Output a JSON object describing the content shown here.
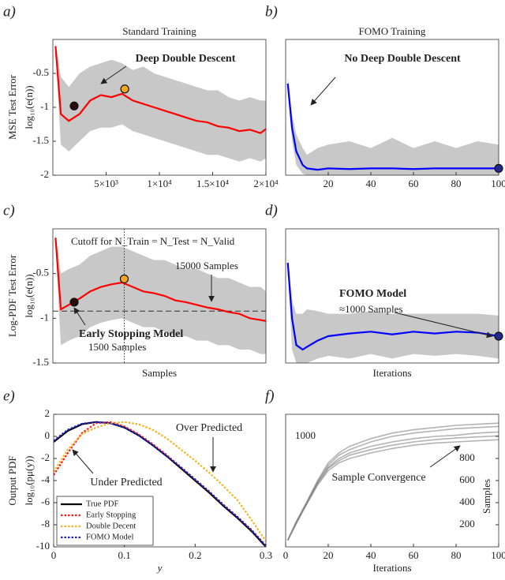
{
  "chart_data": [
    {
      "type": "line",
      "panel_label": "a)",
      "title": "Standard Training",
      "ylabel": [
        "MSE Test Error",
        "log₁₀(e(n))"
      ],
      "xlim": [
        0,
        20000
      ],
      "ylim": [
        -2,
        0
      ],
      "xticks": [
        {
          "value": 5000,
          "label": "5×10³"
        },
        {
          "value": 10000,
          "label": "1×10⁴"
        },
        {
          "value": 15000,
          "label": "1.5×10⁴"
        },
        {
          "value": 20000,
          "label": "2×10⁴"
        }
      ],
      "yticks": [
        -2,
        -1.5,
        -1,
        -0.5
      ],
      "x": [
        250,
        750,
        1500,
        2500,
        3500,
        4500,
        5500,
        6500,
        7500,
        8500,
        9500,
        10500,
        11500,
        12500,
        13500,
        14500,
        15500,
        16500,
        17500,
        18500,
        19500,
        20000
      ],
      "series": [
        {
          "kind": "band",
          "color": "#c8c8c8",
          "upper": [
            -0.05,
            -0.55,
            -0.7,
            -0.5,
            -0.4,
            -0.35,
            -0.3,
            -0.35,
            -0.45,
            -0.4,
            -0.5,
            -0.55,
            -0.6,
            -0.65,
            -0.7,
            -0.75,
            -0.75,
            -0.85,
            -0.9,
            -0.85,
            -0.9,
            -0.9
          ],
          "lower": [
            -0.2,
            -1.55,
            -1.65,
            -1.5,
            -1.35,
            -1.3,
            -1.3,
            -1.25,
            -1.35,
            -1.4,
            -1.45,
            -1.5,
            -1.55,
            -1.6,
            -1.65,
            -1.7,
            -1.7,
            -1.75,
            -1.8,
            -1.75,
            -1.8,
            -1.75
          ]
        },
        {
          "kind": "line",
          "color": "#ff0000",
          "values": [
            -0.1,
            -1.1,
            -1.2,
            -1.1,
            -0.9,
            -0.82,
            -0.85,
            -0.8,
            -0.9,
            -0.95,
            -1.0,
            -1.05,
            -1.1,
            -1.15,
            -1.2,
            -1.22,
            -1.28,
            -1.3,
            -1.35,
            -1.33,
            -1.38,
            -1.32
          ]
        },
        {
          "kind": "points",
          "color": "#2b0a0a",
          "x": [
            2000
          ],
          "values": [
            -0.98
          ]
        },
        {
          "kind": "points",
          "color": "#f5a623",
          "x": [
            6750
          ],
          "values": [
            -0.73
          ]
        }
      ],
      "annotations": [
        "Deep Double Descent"
      ]
    },
    {
      "type": "line",
      "panel_label": "b)",
      "title": "FOMO Training",
      "xlim": [
        0,
        100
      ],
      "ylim": [
        -2,
        0
      ],
      "xticks": [
        20,
        40,
        60,
        80,
        100
      ],
      "x": [
        1,
        3,
        5,
        8,
        10,
        15,
        20,
        30,
        40,
        50,
        60,
        70,
        80,
        90,
        100
      ],
      "series": [
        {
          "kind": "band",
          "color": "#c8c8c8",
          "upper": [
            -0.55,
            -1.1,
            -1.4,
            -1.6,
            -1.7,
            -1.6,
            -1.55,
            -1.5,
            -1.6,
            -1.45,
            -1.6,
            -1.5,
            -1.6,
            -1.5,
            -1.55
          ],
          "lower": [
            -0.75,
            -1.5,
            -1.85,
            -1.98,
            -2,
            -2,
            -2,
            -2,
            -2,
            -2,
            -2,
            -2,
            -2,
            -2,
            -2
          ]
        },
        {
          "kind": "line",
          "color": "#0000ff",
          "values": [
            -0.65,
            -1.3,
            -1.65,
            -1.85,
            -1.9,
            -1.92,
            -1.9,
            -1.91,
            -1.9,
            -1.9,
            -1.91,
            -1.9,
            -1.9,
            -1.9,
            -1.9
          ]
        },
        {
          "kind": "points",
          "color": "#1f2a8a",
          "x": [
            100
          ],
          "values": [
            -1.9
          ]
        }
      ],
      "annotations": [
        "No Deep Double Descent"
      ]
    },
    {
      "type": "line",
      "panel_label": "c)",
      "ylabel": [
        "Log-PDF Test Error",
        "log₁₀(e(n))"
      ],
      "xlabel": "Samples",
      "xlim": [
        0,
        20000
      ],
      "ylim": [
        -1.5,
        0
      ],
      "yticks": [
        -1.5,
        -1,
        -0.5
      ],
      "x": [
        250,
        750,
        1500,
        2500,
        3500,
        4500,
        5500,
        6500,
        7500,
        8500,
        9500,
        10500,
        11500,
        12500,
        13500,
        14500,
        15500,
        16500,
        17500,
        18500,
        19500,
        20000
      ],
      "hline": -0.92,
      "vline": 6700,
      "series": [
        {
          "kind": "band",
          "color": "#c8c8c8",
          "upper": [
            -0.05,
            -0.5,
            -0.45,
            -0.4,
            -0.3,
            -0.25,
            -0.2,
            -0.2,
            -0.25,
            -0.3,
            -0.35,
            -0.35,
            -0.4,
            -0.45,
            -0.45,
            -0.5,
            -0.55,
            -0.55,
            -0.6,
            -0.65,
            -0.65,
            -0.7
          ],
          "lower": [
            -0.2,
            -1.3,
            -1.25,
            -1.2,
            -1.1,
            -1.05,
            -1.02,
            -1.0,
            -1.05,
            -1.1,
            -1.1,
            -1.15,
            -1.2,
            -1.2,
            -1.25,
            -1.25,
            -1.3,
            -1.3,
            -1.35,
            -1.35,
            -1.4,
            -1.4
          ]
        },
        {
          "kind": "line",
          "color": "#ff0000",
          "values": [
            -0.1,
            -0.9,
            -0.85,
            -0.78,
            -0.7,
            -0.65,
            -0.62,
            -0.6,
            -0.65,
            -0.7,
            -0.72,
            -0.75,
            -0.8,
            -0.82,
            -0.85,
            -0.88,
            -0.9,
            -0.93,
            -0.95,
            -1.0,
            -1.02,
            -1.03
          ]
        },
        {
          "kind": "points",
          "color": "#2b0a0a",
          "x": [
            2000
          ],
          "values": [
            -0.82
          ]
        },
        {
          "kind": "points",
          "color": "#f5a623",
          "x": [
            6700
          ],
          "values": [
            -0.56
          ]
        }
      ],
      "annotations": [
        "Cutoff for N_Train = N_Test = N_Valid",
        "15000 Samples",
        "Early Stopping Model",
        "1500 Samples"
      ]
    },
    {
      "type": "line",
      "panel_label": "d)",
      "xlabel": "Iterations",
      "xlim": [
        0,
        100
      ],
      "ylim": [
        -1.5,
        0
      ],
      "x": [
        1,
        3,
        5,
        8,
        10,
        15,
        20,
        30,
        40,
        50,
        60,
        70,
        80,
        90,
        100
      ],
      "series": [
        {
          "kind": "band",
          "color": "#c8c8c8",
          "upper": [
            -0.3,
            -0.8,
            -0.95,
            -0.95,
            -0.9,
            -0.92,
            -0.95,
            -0.95,
            -0.92,
            -0.95,
            -0.95,
            -0.95,
            -0.95,
            -0.95,
            -0.97
          ],
          "lower": [
            -0.45,
            -1.35,
            -1.5,
            -1.5,
            -1.5,
            -1.45,
            -1.42,
            -1.45,
            -1.4,
            -1.45,
            -1.4,
            -1.42,
            -1.4,
            -1.42,
            -1.45
          ]
        },
        {
          "kind": "line",
          "color": "#0000ff",
          "values": [
            -0.38,
            -1.0,
            -1.3,
            -1.35,
            -1.32,
            -1.25,
            -1.2,
            -1.17,
            -1.15,
            -1.18,
            -1.15,
            -1.17,
            -1.15,
            -1.16,
            -1.2
          ]
        },
        {
          "kind": "points",
          "color": "#1f2a8a",
          "x": [
            100
          ],
          "values": [
            -1.2
          ]
        }
      ],
      "annotations": [
        "FOMO Model",
        "≈1000 Samples"
      ]
    },
    {
      "type": "line",
      "panel_label": "e)",
      "ylabel": [
        "Output PDF",
        "log₁₀(pμ(y))"
      ],
      "xlabel": "y",
      "xlim": [
        0,
        0.3
      ],
      "ylim": [
        -10,
        2
      ],
      "xticks": [
        0,
        0.1,
        0.2,
        0.3
      ],
      "yticks": [
        -10,
        -8,
        -6,
        -4,
        -2,
        0,
        2
      ],
      "x": [
        0,
        0.02,
        0.04,
        0.06,
        0.08,
        0.1,
        0.12,
        0.14,
        0.16,
        0.18,
        0.2,
        0.22,
        0.24,
        0.26,
        0.28,
        0.3
      ],
      "legend": "lower left",
      "series": [
        {
          "kind": "line",
          "name": "True PDF",
          "color": "#000000",
          "style": "solid",
          "values": [
            -0.5,
            0.5,
            1.1,
            1.3,
            1.2,
            0.8,
            0.1,
            -0.8,
            -1.8,
            -2.9,
            -4,
            -5.1,
            -6.3,
            -7.4,
            -8.6,
            -10
          ]
        },
        {
          "kind": "line",
          "name": "Early Stopping",
          "color": "#ff1a1a",
          "style": "dotted",
          "values": [
            -3.5,
            -1.5,
            0.3,
            1.2,
            1.3,
            0.9,
            0.2,
            -0.7,
            -1.7,
            -2.8,
            -3.9,
            -5,
            -6.2,
            -7.3,
            -8.5,
            -9.9
          ]
        },
        {
          "kind": "line",
          "name": "Double Decent",
          "color": "#f5b321",
          "style": "dotted",
          "values": [
            -3.2,
            -1.2,
            0.2,
            0.8,
            1.2,
            1.3,
            1.1,
            0.6,
            -0.2,
            -1.2,
            -2.2,
            -3.3,
            -4.5,
            -5.8,
            -7.6,
            -9.5
          ]
        },
        {
          "kind": "line",
          "name": "FOMO Model",
          "color": "#1f1fd0",
          "style": "dotted",
          "values": [
            -0.4,
            0.6,
            1.15,
            1.3,
            1.2,
            0.8,
            0.1,
            -0.8,
            -1.8,
            -2.8,
            -3.9,
            -5,
            -6.2,
            -7.3,
            -8.5,
            -9.9
          ]
        }
      ],
      "annotations": [
        "Over Predicted",
        "Under Predicted"
      ]
    },
    {
      "type": "line",
      "panel_label": "f)",
      "ylabel": [
        "Samples"
      ],
      "xlabel": "Iterations",
      "xlim": [
        0,
        100
      ],
      "ylim": [
        0,
        1200
      ],
      "xticks": [
        0,
        20,
        40,
        60,
        80,
        100
      ],
      "yticks": [
        200,
        400,
        600,
        800,
        1000
      ],
      "x": [
        1,
        5,
        10,
        15,
        20,
        25,
        30,
        40,
        50,
        60,
        70,
        80,
        90,
        100
      ],
      "series": [
        {
          "kind": "line",
          "color": "#808080",
          "values": [
            60,
            220,
            400,
            580,
            720,
            800,
            850,
            910,
            950,
            980,
            1000,
            1010,
            1030,
            1040
          ]
        },
        {
          "kind": "line",
          "color": "#808080",
          "values": [
            60,
            230,
            410,
            600,
            760,
            850,
            910,
            980,
            1030,
            1060,
            1080,
            1100,
            1110,
            1120
          ]
        },
        {
          "kind": "line",
          "color": "#808080",
          "values": [
            60,
            210,
            390,
            560,
            690,
            760,
            800,
            850,
            890,
            920,
            940,
            950,
            960,
            970
          ]
        },
        {
          "kind": "line",
          "color": "#808080",
          "values": [
            60,
            225,
            405,
            590,
            740,
            830,
            880,
            950,
            1000,
            1030,
            1050,
            1070,
            1080,
            1090
          ]
        },
        {
          "kind": "line",
          "color": "#808080",
          "values": [
            60,
            215,
            395,
            570,
            710,
            780,
            830,
            880,
            920,
            950,
            970,
            985,
            995,
            1005
          ]
        }
      ],
      "annotations": [
        "Sample Convergence"
      ]
    }
  ]
}
